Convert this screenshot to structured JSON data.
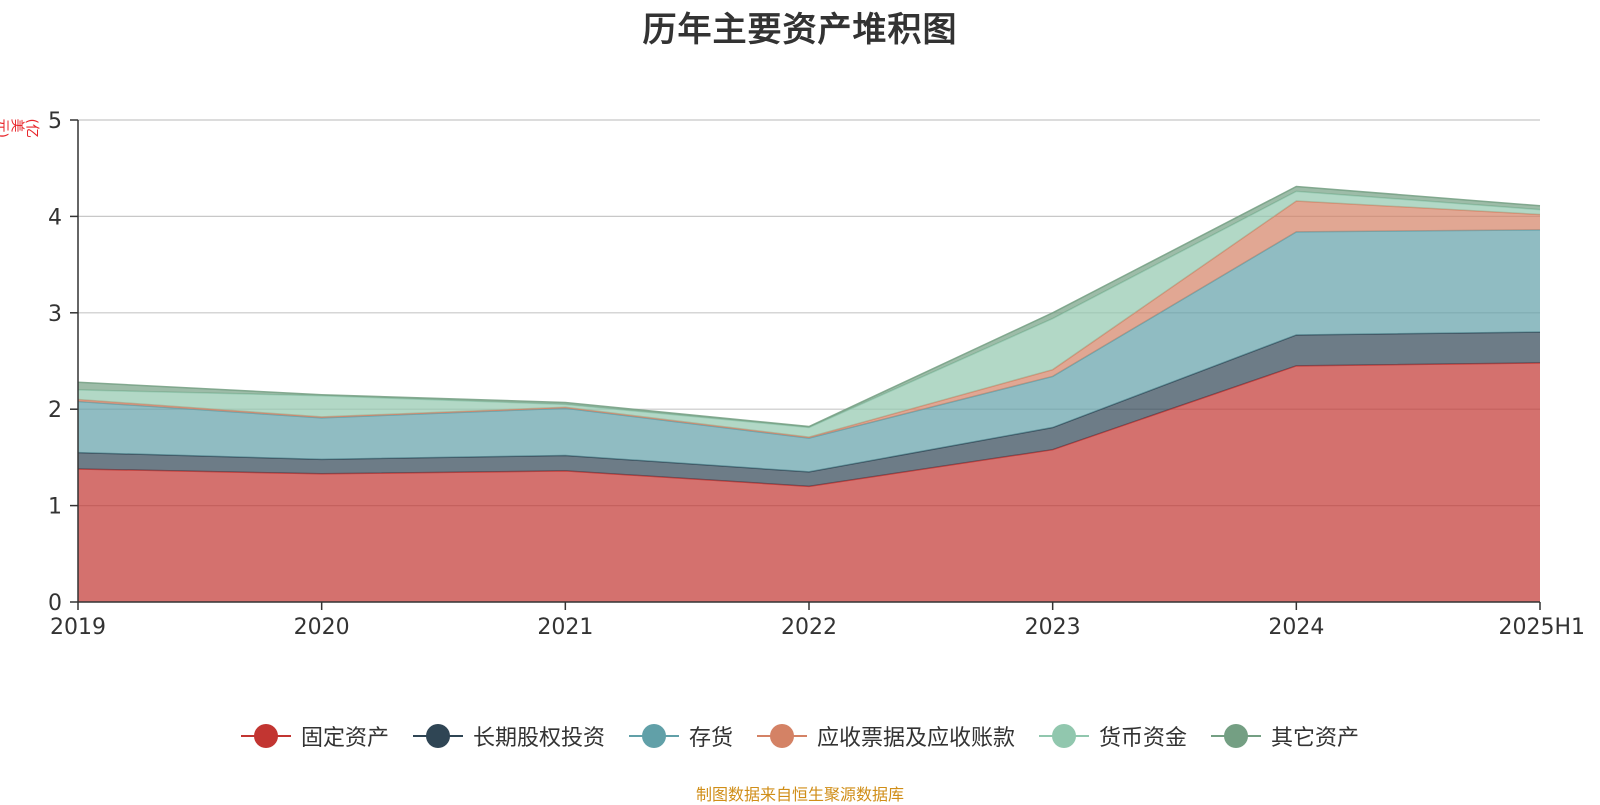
{
  "chart_data": {
    "type": "area",
    "stacked": true,
    "title": "历年主要资产堆积图",
    "unit": "(亿美元)",
    "source_note": "制图数据来自恒生聚源数据库",
    "x": [
      "2019",
      "2020",
      "2021",
      "2022",
      "2023",
      "2024",
      "2025H1"
    ],
    "ylim": [
      0,
      5
    ],
    "yticks": [
      0,
      1,
      2,
      3,
      4,
      5
    ],
    "grid": true,
    "legend_position": "bottom",
    "series": [
      {
        "name": "固定资产",
        "color": "#c23531",
        "values": [
          1.38,
          1.33,
          1.36,
          1.2,
          1.58,
          2.45,
          2.48
        ]
      },
      {
        "name": "长期股权投资",
        "color": "#2f4554",
        "values": [
          0.17,
          0.15,
          0.16,
          0.15,
          0.23,
          0.32,
          0.32
        ]
      },
      {
        "name": "存货",
        "color": "#61a0a8",
        "values": [
          0.53,
          0.43,
          0.49,
          0.35,
          0.53,
          1.07,
          1.06
        ]
      },
      {
        "name": "应收票据及应收账款",
        "color": "#d48265",
        "values": [
          0.02,
          0.01,
          0.01,
          0.01,
          0.07,
          0.32,
          0.16
        ]
      },
      {
        "name": "货币资金",
        "color": "#91c7ae",
        "values": [
          0.1,
          0.22,
          0.03,
          0.1,
          0.53,
          0.1,
          0.05
        ]
      },
      {
        "name": "其它资产",
        "color": "#749f83",
        "values": [
          0.08,
          0.01,
          0.02,
          0.01,
          0.06,
          0.05,
          0.04
        ]
      }
    ]
  }
}
